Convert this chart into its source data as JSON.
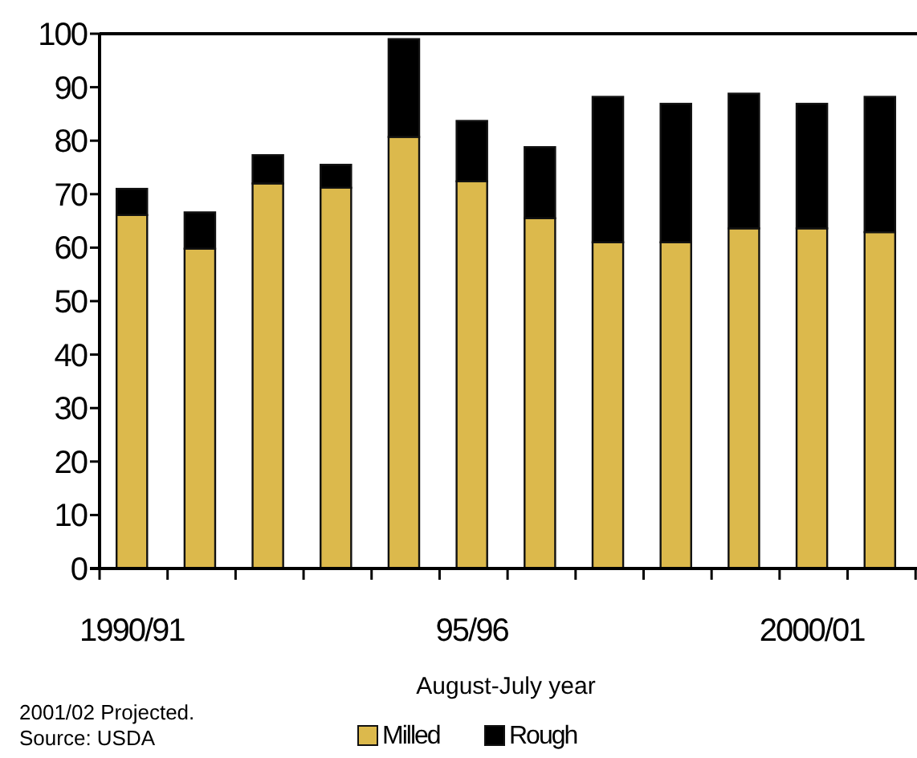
{
  "chart_data": {
    "type": "bar",
    "stacked": true,
    "xlabel": "August-July year",
    "categories": [
      "1990/91",
      null,
      null,
      null,
      null,
      "95/96",
      null,
      null,
      null,
      null,
      "2000/01",
      null
    ],
    "series": [
      {
        "name": "Milled",
        "color": "#dcb94c",
        "values": [
          66.1,
          59.8,
          72,
          71.2,
          80.7,
          72.4,
          65.5,
          61,
          61,
          63.6,
          63.6,
          62.9
        ]
      },
      {
        "name": "Rough",
        "color": "#000000",
        "values": [
          4.9,
          6.8,
          5.3,
          4.3,
          18.3,
          11.3,
          13.3,
          27.2,
          25.9,
          25.2,
          23.3,
          25.3
        ]
      }
    ],
    "ylim": [
      0,
      100
    ],
    "yticks": [
      0,
      10,
      20,
      30,
      40,
      50,
      60,
      70,
      80,
      90,
      100
    ],
    "grid": false,
    "legend": "bottom",
    "annotations": [
      "2001/02 Projected.",
      "Source: USDA"
    ]
  }
}
